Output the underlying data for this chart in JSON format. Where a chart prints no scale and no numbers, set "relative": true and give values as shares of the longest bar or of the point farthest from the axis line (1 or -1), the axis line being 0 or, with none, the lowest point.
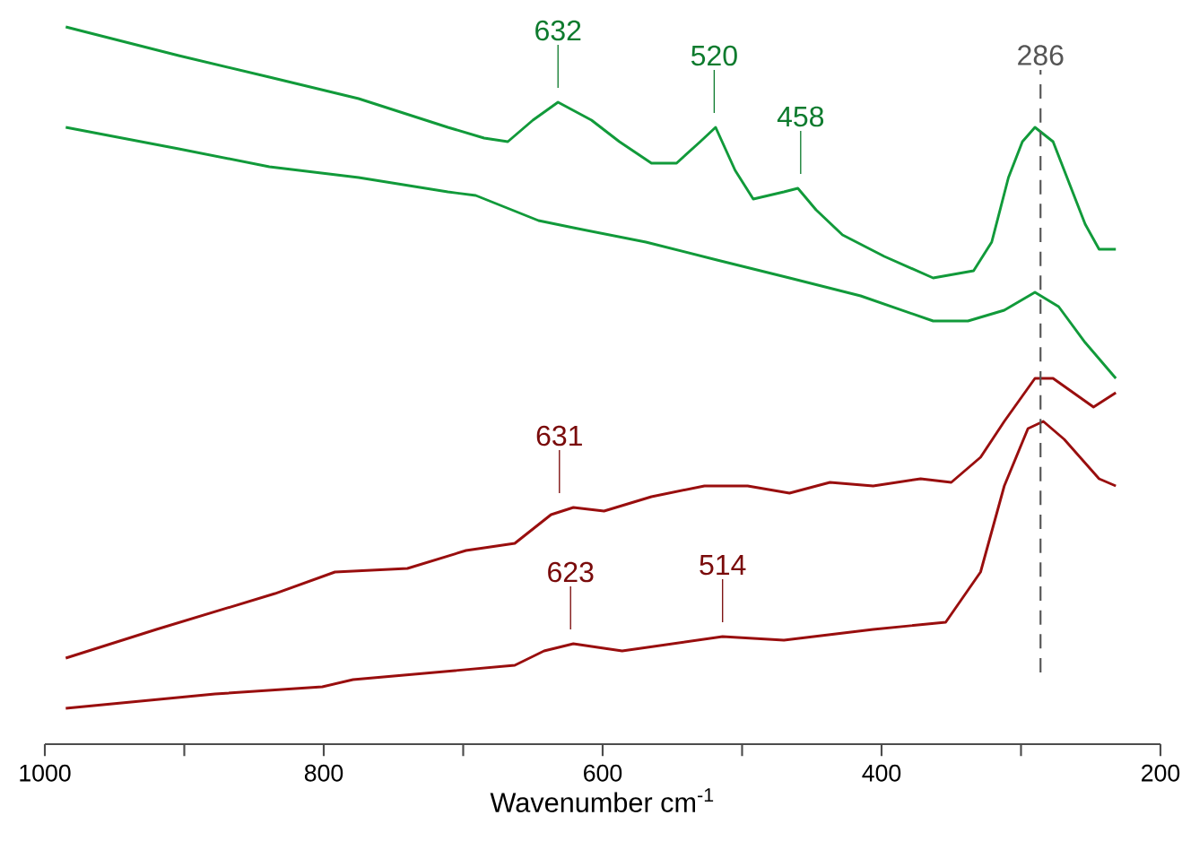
{
  "chart_data": {
    "type": "line",
    "relative": true,
    "xlabel": "Wavenumber cm$^{-1}$",
    "xlim": [
      1000,
      200
    ],
    "xticks": [
      1000,
      {
        "value": 900,
        "label": null
      },
      800,
      {
        "value": 700,
        "label": null
      },
      600,
      {
        "value": 500,
        "label": null
      },
      400,
      {
        "value": 300,
        "label": null
      },
      200
    ],
    "series": [
      {
        "color": "#119a3a",
        "x": [
          985,
          904,
          839,
          775,
          711,
          685,
          668,
          650,
          632,
          608,
          588,
          565,
          547,
          530,
          519,
          505,
          492,
          470,
          460,
          447,
          428,
          398,
          363,
          334,
          321,
          309,
          299,
          290,
          277,
          264,
          254,
          244,
          232
        ],
        "values": [
          1.0,
          0.96,
          0.93,
          0.9,
          0.86,
          0.845,
          0.84,
          0.87,
          0.895,
          0.87,
          0.84,
          0.81,
          0.81,
          0.84,
          0.86,
          0.8,
          0.76,
          0.77,
          0.775,
          0.745,
          0.71,
          0.68,
          0.65,
          0.66,
          0.7,
          0.79,
          0.84,
          0.86,
          0.84,
          0.775,
          0.725,
          0.69,
          0.69
        ]
      },
      {
        "color": "#119a3a",
        "x": [
          985,
          904,
          839,
          775,
          711,
          691,
          646,
          621,
          569,
          518,
          466,
          415,
          363,
          338,
          312,
          290,
          273,
          254,
          232
        ],
        "values": [
          0.86,
          0.83,
          0.805,
          0.79,
          0.77,
          0.765,
          0.73,
          0.72,
          0.7,
          0.675,
          0.65,
          0.625,
          0.59,
          0.59,
          0.605,
          0.63,
          0.61,
          0.56,
          0.51
        ]
      },
      {
        "color": "#990e0e",
        "x": [
          985,
          920,
          835,
          792,
          740,
          698,
          663,
          637,
          621,
          599,
          565,
          527,
          496,
          466,
          437,
          406,
          372,
          350,
          329,
          312,
          290,
          277,
          248,
          232
        ],
        "values": [
          0.12,
          0.16,
          0.21,
          0.24,
          0.245,
          0.27,
          0.28,
          0.32,
          0.33,
          0.325,
          0.345,
          0.36,
          0.36,
          0.35,
          0.365,
          0.36,
          0.37,
          0.365,
          0.4,
          0.45,
          0.51,
          0.51,
          0.47,
          0.49
        ]
      },
      {
        "color": "#990e0e",
        "x": [
          985,
          878,
          801,
          779,
          663,
          642,
          621,
          586,
          514,
          470,
          406,
          354,
          329,
          312,
          295,
          284,
          269,
          244,
          232
        ],
        "values": [
          0.05,
          0.07,
          0.08,
          0.09,
          0.11,
          0.13,
          0.14,
          0.13,
          0.15,
          0.145,
          0.16,
          0.17,
          0.24,
          0.36,
          0.44,
          0.45,
          0.425,
          0.37,
          0.36
        ]
      }
    ],
    "annotations": [
      {
        "text": "632",
        "x": 632,
        "y": 0.895
      },
      {
        "text": "520",
        "x": 520,
        "y": 0.86
      },
      {
        "text": "458",
        "x": 458,
        "y": 0.775
      },
      {
        "text": "631",
        "x": 631,
        "y": 0.33
      },
      {
        "text": "623",
        "x": 623,
        "y": 0.14
      },
      {
        "text": "514",
        "x": 514,
        "y": 0.15
      }
    ],
    "ref_lines": [
      {
        "axis": "x",
        "value": 286,
        "label": "286",
        "color": "#555555",
        "line_style": "dashed"
      }
    ]
  }
}
